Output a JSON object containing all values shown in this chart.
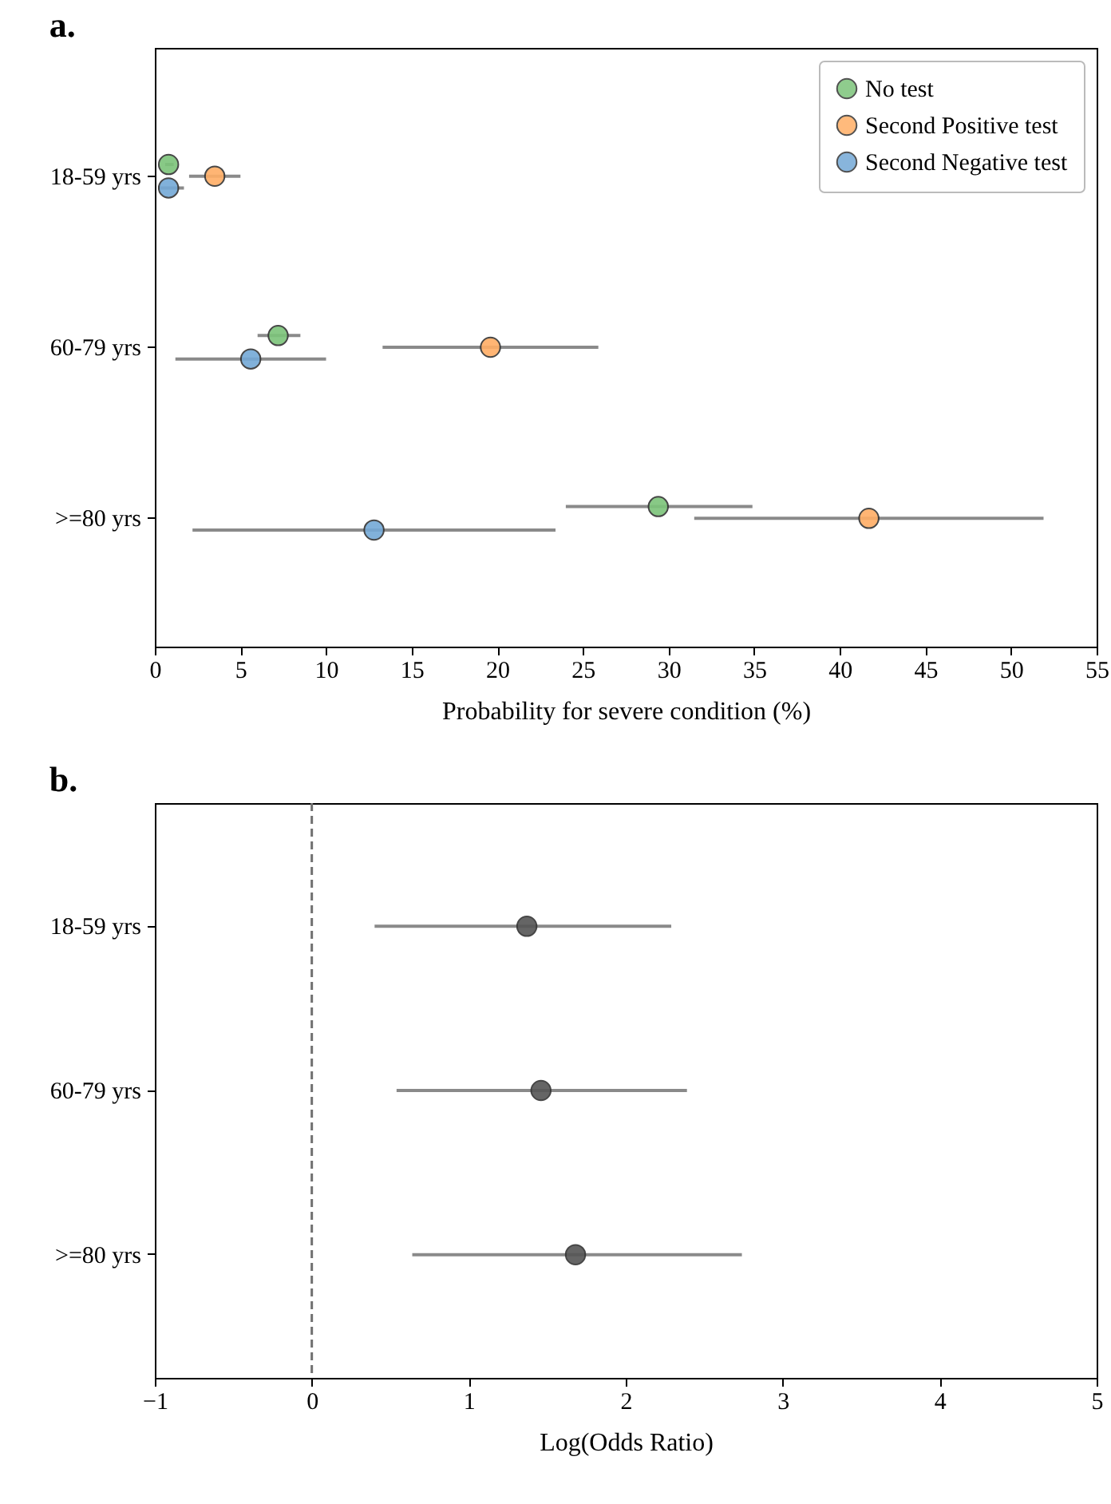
{
  "chart_data": [
    {
      "type": "scatter",
      "title": "a.",
      "xlabel": "Probability for severe condition (%)",
      "orientation": "horizontal",
      "categories": [
        "18-59 yrs",
        "60-79 yrs",
        ">=80 yrs"
      ],
      "xlim": [
        0,
        55
      ],
      "xticks": [
        0,
        5,
        10,
        15,
        20,
        25,
        30,
        35,
        40,
        45,
        50,
        55
      ],
      "legend": "top right",
      "marker": "circle",
      "series": [
        {
          "name": "No test",
          "color": "#7cc47a",
          "values": [
            0.8,
            7.2,
            29.4
          ],
          "errors": [
            [
              0.6,
              1.1
            ],
            [
              6.0,
              8.5
            ],
            [
              24.0,
              34.9
            ]
          ]
        },
        {
          "name": "Second Positive test",
          "color": "#ffae66",
          "values": [
            3.5,
            19.6,
            41.7
          ],
          "errors": [
            [
              2.0,
              5.0
            ],
            [
              13.3,
              25.9
            ],
            [
              31.5,
              51.9
            ]
          ]
        },
        {
          "name": "Second Negative test",
          "color": "#74a9d6",
          "values": [
            0.8,
            5.6,
            12.8
          ],
          "errors": [
            [
              0.2,
              1.7
            ],
            [
              1.2,
              10.0
            ],
            [
              2.2,
              23.4
            ]
          ]
        }
      ]
    },
    {
      "type": "scatter",
      "title": "b.",
      "xlabel": "Log(Odds Ratio)",
      "orientation": "horizontal",
      "categories": [
        "18-59 yrs",
        "60-79 yrs",
        ">=80 yrs"
      ],
      "xlim": [
        -1,
        5
      ],
      "xticks": [
        {
          "value": -1,
          "label": "−1"
        },
        0,
        1,
        2,
        3,
        4,
        5
      ],
      "marker": "circle",
      "ref_lines": [
        {
          "axis": "x",
          "value": 0,
          "color": "#707070",
          "line_style": "dashed"
        }
      ],
      "series": [
        {
          "color": "#555555",
          "values": [
            1.37,
            1.46,
            1.68
          ],
          "errors": [
            [
              0.4,
              2.29
            ],
            [
              0.54,
              2.39
            ],
            [
              0.64,
              2.74
            ]
          ]
        }
      ]
    }
  ]
}
